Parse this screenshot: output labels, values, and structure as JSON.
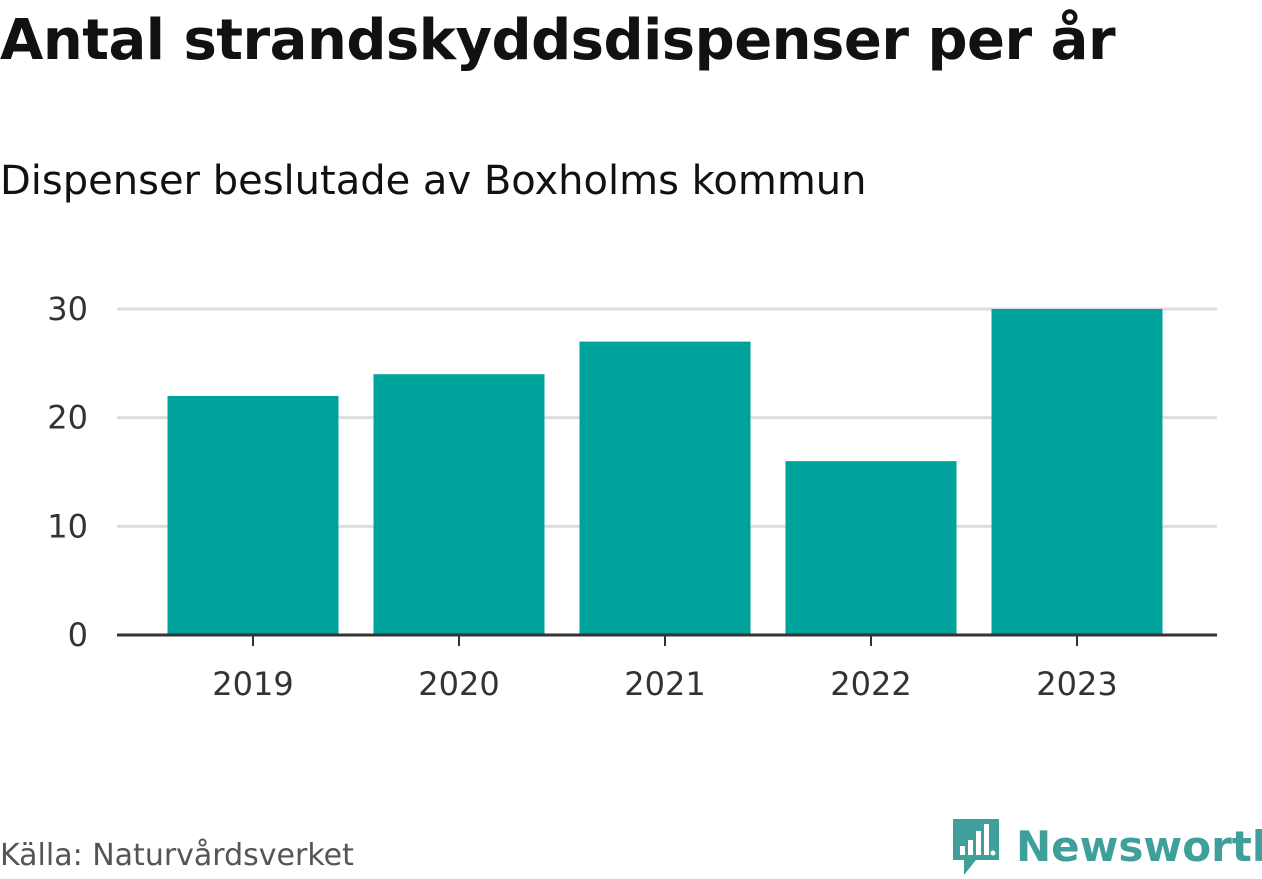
{
  "header": {
    "title": "Antal strandskyddsdispenser per år",
    "subtitle": "Dispenser beslutade av Boxholms kommun"
  },
  "footer": {
    "source": "Källa: Naturvårdsverket",
    "brand": "Newsworthy"
  },
  "colors": {
    "bar": "#00A39B",
    "grid": "#DDDDDD",
    "axis": "#333333",
    "text": "#111111",
    "tick_text": "#333333",
    "source_text": "#555555",
    "brand": "#3F9F9A"
  },
  "icons": {
    "brand_logo": "newsworthy-logo-icon"
  },
  "chart_data": {
    "type": "bar",
    "categories": [
      "2019",
      "2020",
      "2021",
      "2022",
      "2023"
    ],
    "values": [
      22,
      24,
      27,
      16,
      30
    ],
    "title": "Antal strandskyddsdispenser per år",
    "subtitle": "Dispenser beslutade av Boxholms kommun",
    "ylim": [
      0,
      30
    ],
    "yticks": [
      0,
      10,
      20,
      30
    ],
    "grid": true,
    "legend": "none"
  }
}
